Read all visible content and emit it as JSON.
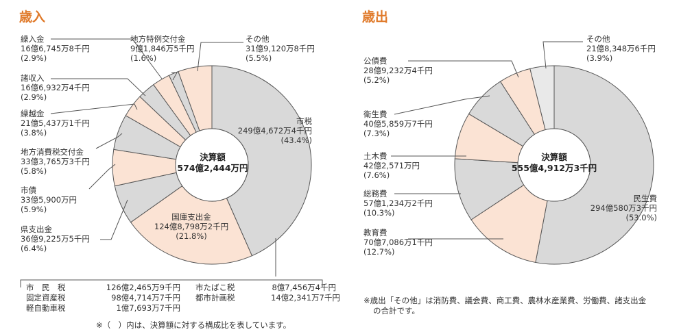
{
  "chart_data": [
    {
      "type": "pie",
      "title": "歳入",
      "center_label": "決算額",
      "center_value": "574億2,444万円",
      "slices": [
        {
          "name": "市税",
          "amount": "249億4,672万4千円",
          "pct_label": "(43.4%)",
          "value": 43.4,
          "color": "#d9d9d9"
        },
        {
          "name": "国庫支出金",
          "amount": "124億8,798万2千円",
          "pct_label": "(21.8%)",
          "value": 21.8,
          "color": "#fbe3d4"
        },
        {
          "name": "県支出金",
          "amount": "36億9,225万5千円",
          "pct_label": "(6.4%)",
          "value": 6.4,
          "color": "#d9d9d9"
        },
        {
          "name": "市債",
          "amount": "33億5,900万円",
          "pct_label": "(5.9%)",
          "value": 5.9,
          "color": "#fbe3d4"
        },
        {
          "name": "地方消費税交付金",
          "amount": "33億3,765万3千円",
          "pct_label": "(5.8%)",
          "value": 5.8,
          "color": "#d9d9d9"
        },
        {
          "name": "繰越金",
          "amount": "21億5,437万1千円",
          "pct_label": "(3.8%)",
          "value": 3.8,
          "color": "#fbe3d4"
        },
        {
          "name": "諸収入",
          "amount": "16億6,932万4千円",
          "pct_label": "(2.9%)",
          "value": 2.9,
          "color": "#d9d9d9"
        },
        {
          "name": "繰入金",
          "amount": "16億6,745万8千円",
          "pct_label": "(2.9%)",
          "value": 2.9,
          "color": "#fbe3d4"
        },
        {
          "name": "地方特例交付金",
          "amount": "9億1,846万5千円",
          "pct_label": "(1.6%)",
          "value": 1.6,
          "color": "#d9d9d9"
        },
        {
          "name": "その他",
          "amount": "31億9,120万8千円",
          "pct_label": "(5.5%)",
          "value": 5.5,
          "color": "#fbe3d4"
        }
      ]
    },
    {
      "type": "pie",
      "title": "歳出",
      "center_label": "決算額",
      "center_value": "555億4,912万3千円",
      "slices": [
        {
          "name": "民生費",
          "amount": "294億580万3千円",
          "pct_label": "(53.0%)",
          "value": 53.0,
          "color": "#d9d9d9"
        },
        {
          "name": "教育費",
          "amount": "70億7,086万1千円",
          "pct_label": "(12.7%)",
          "value": 12.7,
          "color": "#fbe3d4"
        },
        {
          "name": "総務費",
          "amount": "57億1,234万2千円",
          "pct_label": "(10.3%)",
          "value": 10.3,
          "color": "#d9d9d9"
        },
        {
          "name": "土木費",
          "amount": "42億2,571万円",
          "pct_label": "(7.6%)",
          "value": 7.6,
          "color": "#fbe3d4"
        },
        {
          "name": "衛生費",
          "amount": "40億5,859万7千円",
          "pct_label": "(7.3%)",
          "value": 7.3,
          "color": "#d9d9d9"
        },
        {
          "name": "公債費",
          "amount": "28億9,232万4千円",
          "pct_label": "(5.2%)",
          "value": 5.2,
          "color": "#fbe3d4"
        },
        {
          "name": "その他",
          "amount": "21億8,348万6千円",
          "pct_label": "(3.9%)",
          "value": 3.9,
          "color": "#e9e9e9"
        }
      ]
    }
  ],
  "tax_breakdown": [
    {
      "l_name": "市　民　税",
      "l_amount": "126億2,465万9千円",
      "r_name": "市たばこ税",
      "r_amount": "8億7,456万4千円"
    },
    {
      "l_name": "固定資産税",
      "l_amount": "98億4,714万7千円",
      "r_name": "都市計画税",
      "r_amount": "14億2,341万7千円"
    },
    {
      "l_name": "軽自動車税",
      "l_amount": "1億7,693万7千円",
      "r_name": "",
      "r_amount": ""
    }
  ],
  "notes": {
    "revenue": "※（　）内は、決算額に対する構成比を表しています。",
    "expenditure_1": "※歳出「その他」は消防費、議会費、商工費、農林水産業費、労働費、諸支出金",
    "expenditure_2": "の合計です。"
  }
}
